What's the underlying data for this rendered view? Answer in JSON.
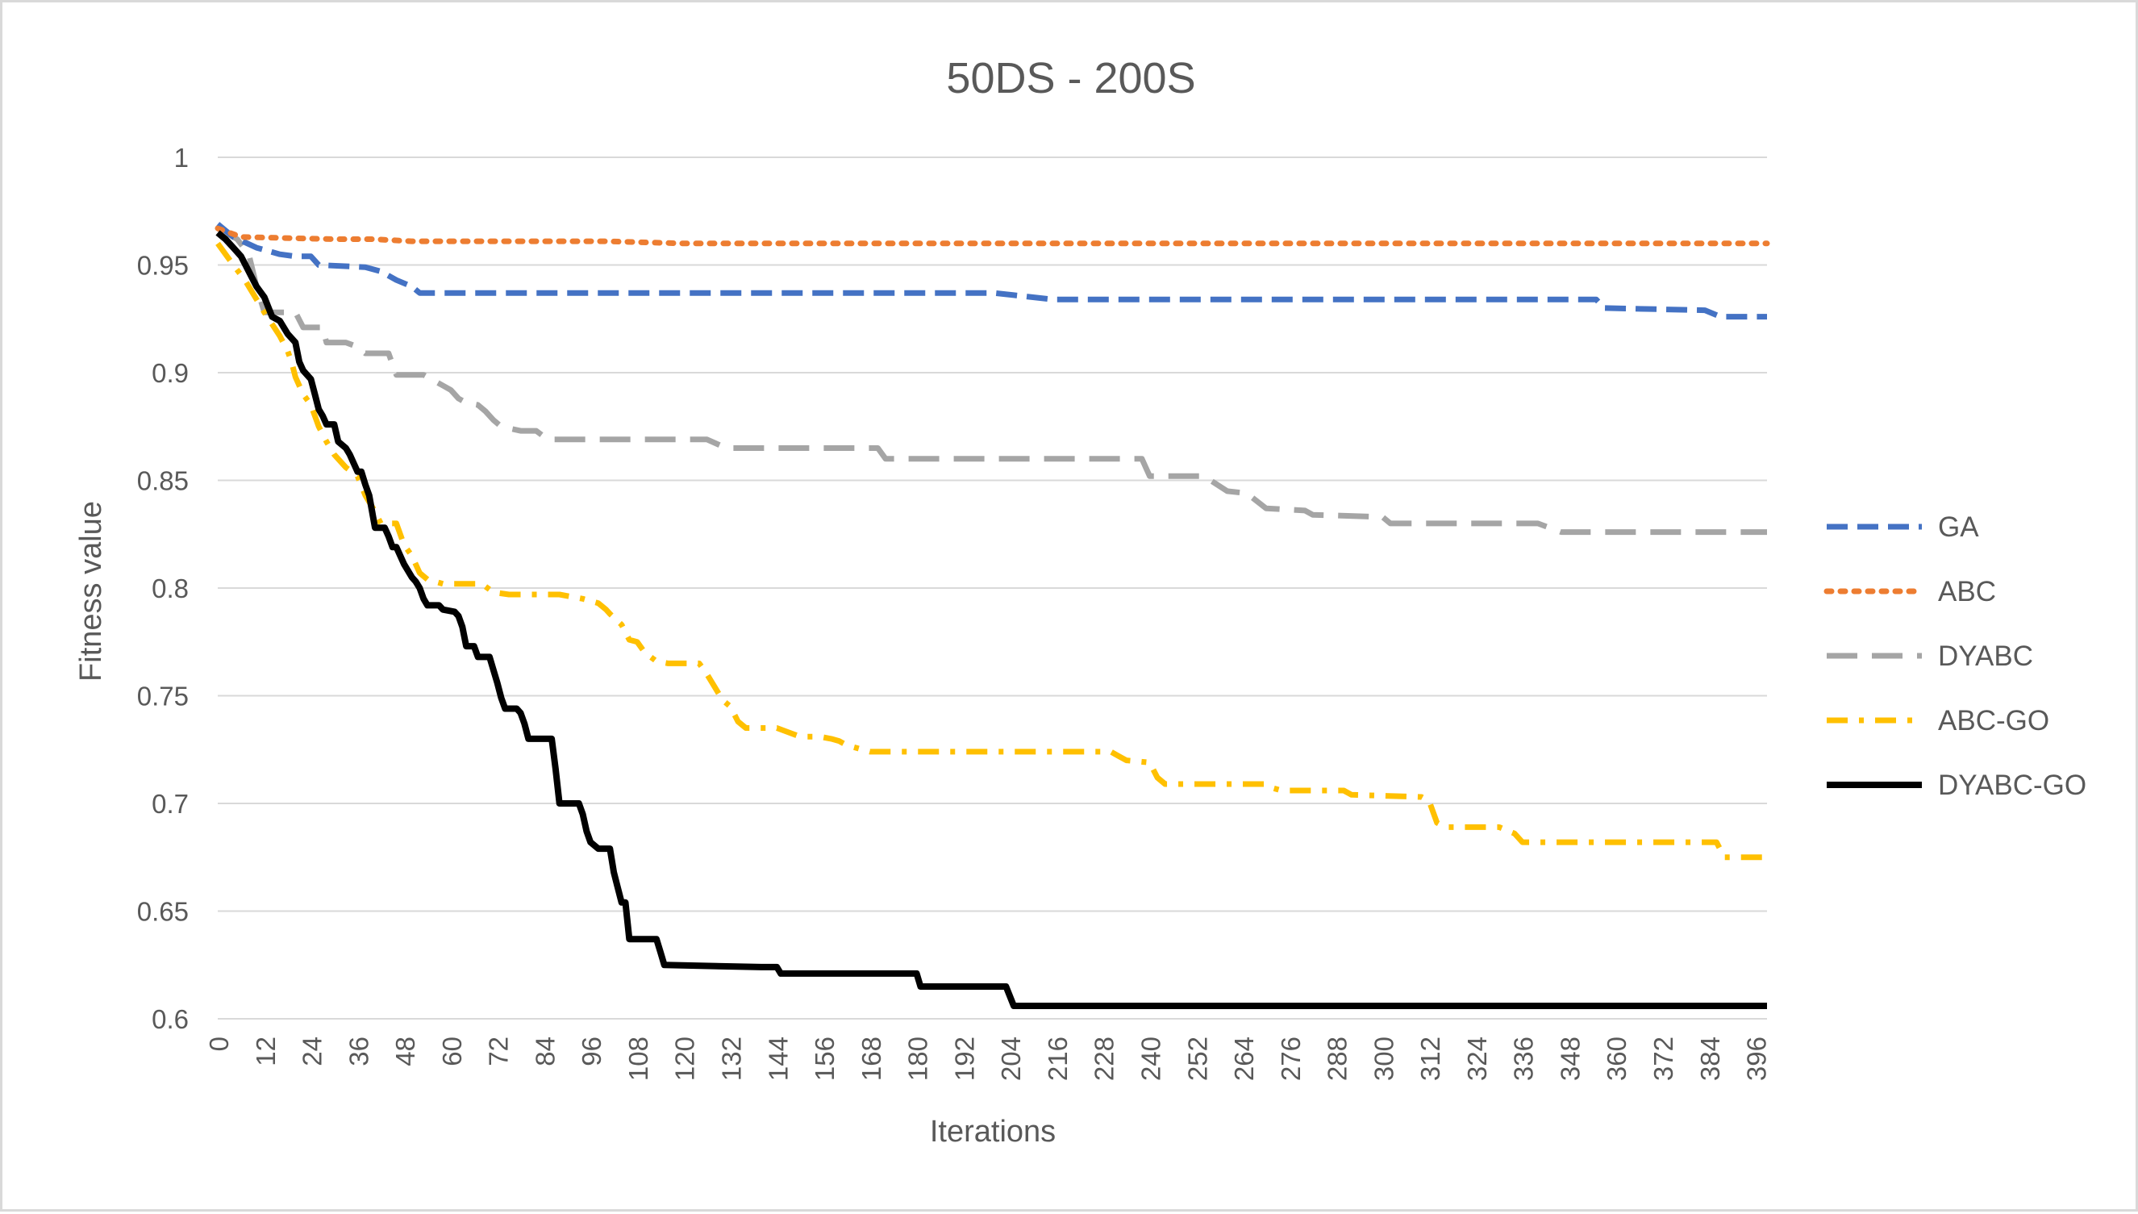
{
  "chart_data": {
    "type": "line",
    "title": "50DS - 200S",
    "xlabel": "Iterations",
    "ylabel": "Fitness value",
    "xlim": [
      0,
      399
    ],
    "ylim": [
      0.6,
      1
    ],
    "grid": "horizontal",
    "legend_position": "right",
    "y_ticks": [
      "0.6",
      "0.65",
      "0.7",
      "0.75",
      "0.8",
      "0.85",
      "0.9",
      "0.95",
      "1"
    ],
    "x_ticks": [
      "0",
      "12",
      "24",
      "36",
      "48",
      "60",
      "72",
      "84",
      "96",
      "108",
      "120",
      "132",
      "144",
      "156",
      "168",
      "180",
      "192",
      "204",
      "216",
      "228",
      "240",
      "252",
      "264",
      "276",
      "288",
      "300",
      "312",
      "324",
      "336",
      "348",
      "360",
      "372",
      "384",
      "396"
    ],
    "series": [
      {
        "name": "GA",
        "color": "#4472c4",
        "dash": "dash",
        "width": 7,
        "points": [
          [
            0,
            0.969
          ],
          [
            4,
            0.963
          ],
          [
            10,
            0.958
          ],
          [
            16,
            0.955
          ],
          [
            20,
            0.954
          ],
          [
            24,
            0.954
          ],
          [
            26,
            0.95
          ],
          [
            38,
            0.949
          ],
          [
            42,
            0.947
          ],
          [
            46,
            0.943
          ],
          [
            50,
            0.94
          ],
          [
            52,
            0.937
          ],
          [
            200,
            0.937
          ],
          [
            205,
            0.936
          ],
          [
            215,
            0.934
          ],
          [
            355,
            0.934
          ],
          [
            357,
            0.93
          ],
          [
            383,
            0.929
          ],
          [
            387,
            0.926
          ],
          [
            399,
            0.926
          ]
        ]
      },
      {
        "name": "ABC",
        "color": "#ed7d31",
        "dash": "dot",
        "width": 7,
        "points": [
          [
            0,
            0.967
          ],
          [
            6,
            0.963
          ],
          [
            30,
            0.962
          ],
          [
            40,
            0.962
          ],
          [
            50,
            0.961
          ],
          [
            60,
            0.961
          ],
          [
            100,
            0.961
          ],
          [
            120,
            0.96
          ],
          [
            399,
            0.96
          ]
        ]
      },
      {
        "name": "DYABC",
        "color": "#a5a5a5",
        "dash": "longdash",
        "width": 7,
        "points": [
          [
            0,
            0.967
          ],
          [
            5,
            0.962
          ],
          [
            8,
            0.955
          ],
          [
            10,
            0.94
          ],
          [
            12,
            0.928
          ],
          [
            20,
            0.928
          ],
          [
            22,
            0.921
          ],
          [
            27,
            0.921
          ],
          [
            28,
            0.914
          ],
          [
            33,
            0.914
          ],
          [
            36,
            0.912
          ],
          [
            38,
            0.909
          ],
          [
            44,
            0.909
          ],
          [
            46,
            0.899
          ],
          [
            53,
            0.899
          ],
          [
            58,
            0.894
          ],
          [
            60,
            0.892
          ],
          [
            62,
            0.888
          ],
          [
            64,
            0.886
          ],
          [
            67,
            0.885
          ],
          [
            69,
            0.882
          ],
          [
            71,
            0.878
          ],
          [
            73,
            0.875
          ],
          [
            78,
            0.873
          ],
          [
            82,
            0.873
          ],
          [
            85,
            0.869
          ],
          [
            116,
            0.869
          ],
          [
            120,
            0.869
          ],
          [
            126,
            0.869
          ],
          [
            131,
            0.865
          ],
          [
            160,
            0.865
          ],
          [
            170,
            0.865
          ],
          [
            172,
            0.86
          ],
          [
            238,
            0.86
          ],
          [
            240,
            0.852
          ],
          [
            250,
            0.852
          ],
          [
            254,
            0.852
          ],
          [
            260,
            0.845
          ],
          [
            265,
            0.844
          ],
          [
            270,
            0.837
          ],
          [
            280,
            0.836
          ],
          [
            282,
            0.834
          ],
          [
            300,
            0.833
          ],
          [
            302,
            0.83
          ],
          [
            304,
            0.83
          ],
          [
            310,
            0.83
          ],
          [
            340,
            0.83
          ],
          [
            346,
            0.826
          ],
          [
            399,
            0.826
          ]
        ]
      },
      {
        "name": "ABC-GO",
        "color": "#ffc000",
        "dash": "dashdot",
        "width": 7,
        "points": [
          [
            0,
            0.96
          ],
          [
            4,
            0.95
          ],
          [
            7,
            0.943
          ],
          [
            12,
            0.928
          ],
          [
            16,
            0.917
          ],
          [
            18,
            0.91
          ],
          [
            19,
            0.905
          ],
          [
            20,
            0.898
          ],
          [
            22,
            0.89
          ],
          [
            24,
            0.885
          ],
          [
            26,
            0.875
          ],
          [
            28,
            0.868
          ],
          [
            30,
            0.862
          ],
          [
            33,
            0.856
          ],
          [
            36,
            0.852
          ],
          [
            38,
            0.843
          ],
          [
            40,
            0.837
          ],
          [
            42,
            0.83
          ],
          [
            46,
            0.83
          ],
          [
            47,
            0.825
          ],
          [
            48,
            0.82
          ],
          [
            50,
            0.815
          ],
          [
            52,
            0.807
          ],
          [
            54,
            0.804
          ],
          [
            56,
            0.803
          ],
          [
            58,
            0.802
          ],
          [
            68,
            0.802
          ],
          [
            71,
            0.798
          ],
          [
            75,
            0.797
          ],
          [
            80,
            0.797
          ],
          [
            88,
            0.797
          ],
          [
            94,
            0.795
          ],
          [
            98,
            0.793
          ],
          [
            100,
            0.79
          ],
          [
            101,
            0.788
          ],
          [
            104,
            0.783
          ],
          [
            106,
            0.776
          ],
          [
            108,
            0.775
          ],
          [
            110,
            0.77
          ],
          [
            113,
            0.766
          ],
          [
            116,
            0.765
          ],
          [
            118,
            0.765
          ],
          [
            124,
            0.765
          ],
          [
            126,
            0.76
          ],
          [
            128,
            0.754
          ],
          [
            130,
            0.748
          ],
          [
            132,
            0.745
          ],
          [
            134,
            0.738
          ],
          [
            136,
            0.735
          ],
          [
            139,
            0.735
          ],
          [
            144,
            0.735
          ],
          [
            147,
            0.733
          ],
          [
            150,
            0.731
          ],
          [
            155,
            0.731
          ],
          [
            158,
            0.73
          ],
          [
            160,
            0.729
          ],
          [
            162,
            0.727
          ],
          [
            166,
            0.725
          ],
          [
            168,
            0.724
          ],
          [
            210,
            0.724
          ],
          [
            230,
            0.724
          ],
          [
            232,
            0.722
          ],
          [
            234,
            0.72
          ],
          [
            240,
            0.719
          ],
          [
            242,
            0.712
          ],
          [
            244,
            0.709
          ],
          [
            270,
            0.709
          ],
          [
            272,
            0.707
          ],
          [
            274,
            0.706
          ],
          [
            290,
            0.706
          ],
          [
            292,
            0.704
          ],
          [
            310,
            0.703
          ],
          [
            312,
            0.701
          ],
          [
            314,
            0.691
          ],
          [
            316,
            0.689
          ],
          [
            330,
            0.689
          ],
          [
            334,
            0.686
          ],
          [
            336,
            0.682
          ],
          [
            340,
            0.682
          ],
          [
            360,
            0.682
          ],
          [
            380,
            0.682
          ],
          [
            386,
            0.682
          ],
          [
            388,
            0.675
          ],
          [
            399,
            0.675
          ]
        ]
      },
      {
        "name": "DYABC-GO",
        "color": "#000000",
        "dash": "solid",
        "width": 8,
        "points": [
          [
            0,
            0.965
          ],
          [
            2,
            0.962
          ],
          [
            4,
            0.958
          ],
          [
            6,
            0.954
          ],
          [
            8,
            0.947
          ],
          [
            10,
            0.94
          ],
          [
            12,
            0.935
          ],
          [
            14,
            0.926
          ],
          [
            16,
            0.924
          ],
          [
            18,
            0.918
          ],
          [
            20,
            0.914
          ],
          [
            21,
            0.905
          ],
          [
            22,
            0.901
          ],
          [
            24,
            0.897
          ],
          [
            25,
            0.89
          ],
          [
            26,
            0.883
          ],
          [
            27,
            0.88
          ],
          [
            28,
            0.876
          ],
          [
            30,
            0.876
          ],
          [
            31,
            0.868
          ],
          [
            33,
            0.865
          ],
          [
            34,
            0.862
          ],
          [
            35,
            0.858
          ],
          [
            36,
            0.854
          ],
          [
            37,
            0.854
          ],
          [
            38,
            0.848
          ],
          [
            39,
            0.843
          ],
          [
            40,
            0.833
          ],
          [
            40.5,
            0.828
          ],
          [
            43,
            0.828
          ],
          [
            44,
            0.824
          ],
          [
            45,
            0.819
          ],
          [
            46,
            0.819
          ],
          [
            48,
            0.811
          ],
          [
            49,
            0.808
          ],
          [
            50,
            0.805
          ],
          [
            51,
            0.803
          ],
          [
            52,
            0.8
          ],
          [
            53,
            0.795
          ],
          [
            54,
            0.792
          ],
          [
            57,
            0.792
          ],
          [
            58,
            0.79
          ],
          [
            61,
            0.789
          ],
          [
            62,
            0.787
          ],
          [
            63,
            0.782
          ],
          [
            64,
            0.773
          ],
          [
            66,
            0.773
          ],
          [
            67,
            0.768
          ],
          [
            70,
            0.768
          ],
          [
            71,
            0.762
          ],
          [
            72,
            0.756
          ],
          [
            73,
            0.749
          ],
          [
            74,
            0.744
          ],
          [
            77,
            0.744
          ],
          [
            78,
            0.742
          ],
          [
            79,
            0.737
          ],
          [
            80,
            0.73
          ],
          [
            84,
            0.73
          ],
          [
            86,
            0.73
          ],
          [
            87,
            0.716
          ],
          [
            88,
            0.7
          ],
          [
            93,
            0.7
          ],
          [
            94,
            0.695
          ],
          [
            95,
            0.687
          ],
          [
            96,
            0.682
          ],
          [
            98,
            0.679
          ],
          [
            101,
            0.679
          ],
          [
            102,
            0.668
          ],
          [
            103,
            0.661
          ],
          [
            104,
            0.654
          ],
          [
            105,
            0.654
          ],
          [
            106,
            0.637
          ],
          [
            113,
            0.637
          ],
          [
            114,
            0.631
          ],
          [
            115,
            0.625
          ],
          [
            140,
            0.624
          ],
          [
            144,
            0.624
          ],
          [
            145,
            0.621
          ],
          [
            180,
            0.621
          ],
          [
            181,
            0.615
          ],
          [
            203,
            0.615
          ],
          [
            205,
            0.606
          ],
          [
            399,
            0.606
          ]
        ]
      }
    ]
  }
}
